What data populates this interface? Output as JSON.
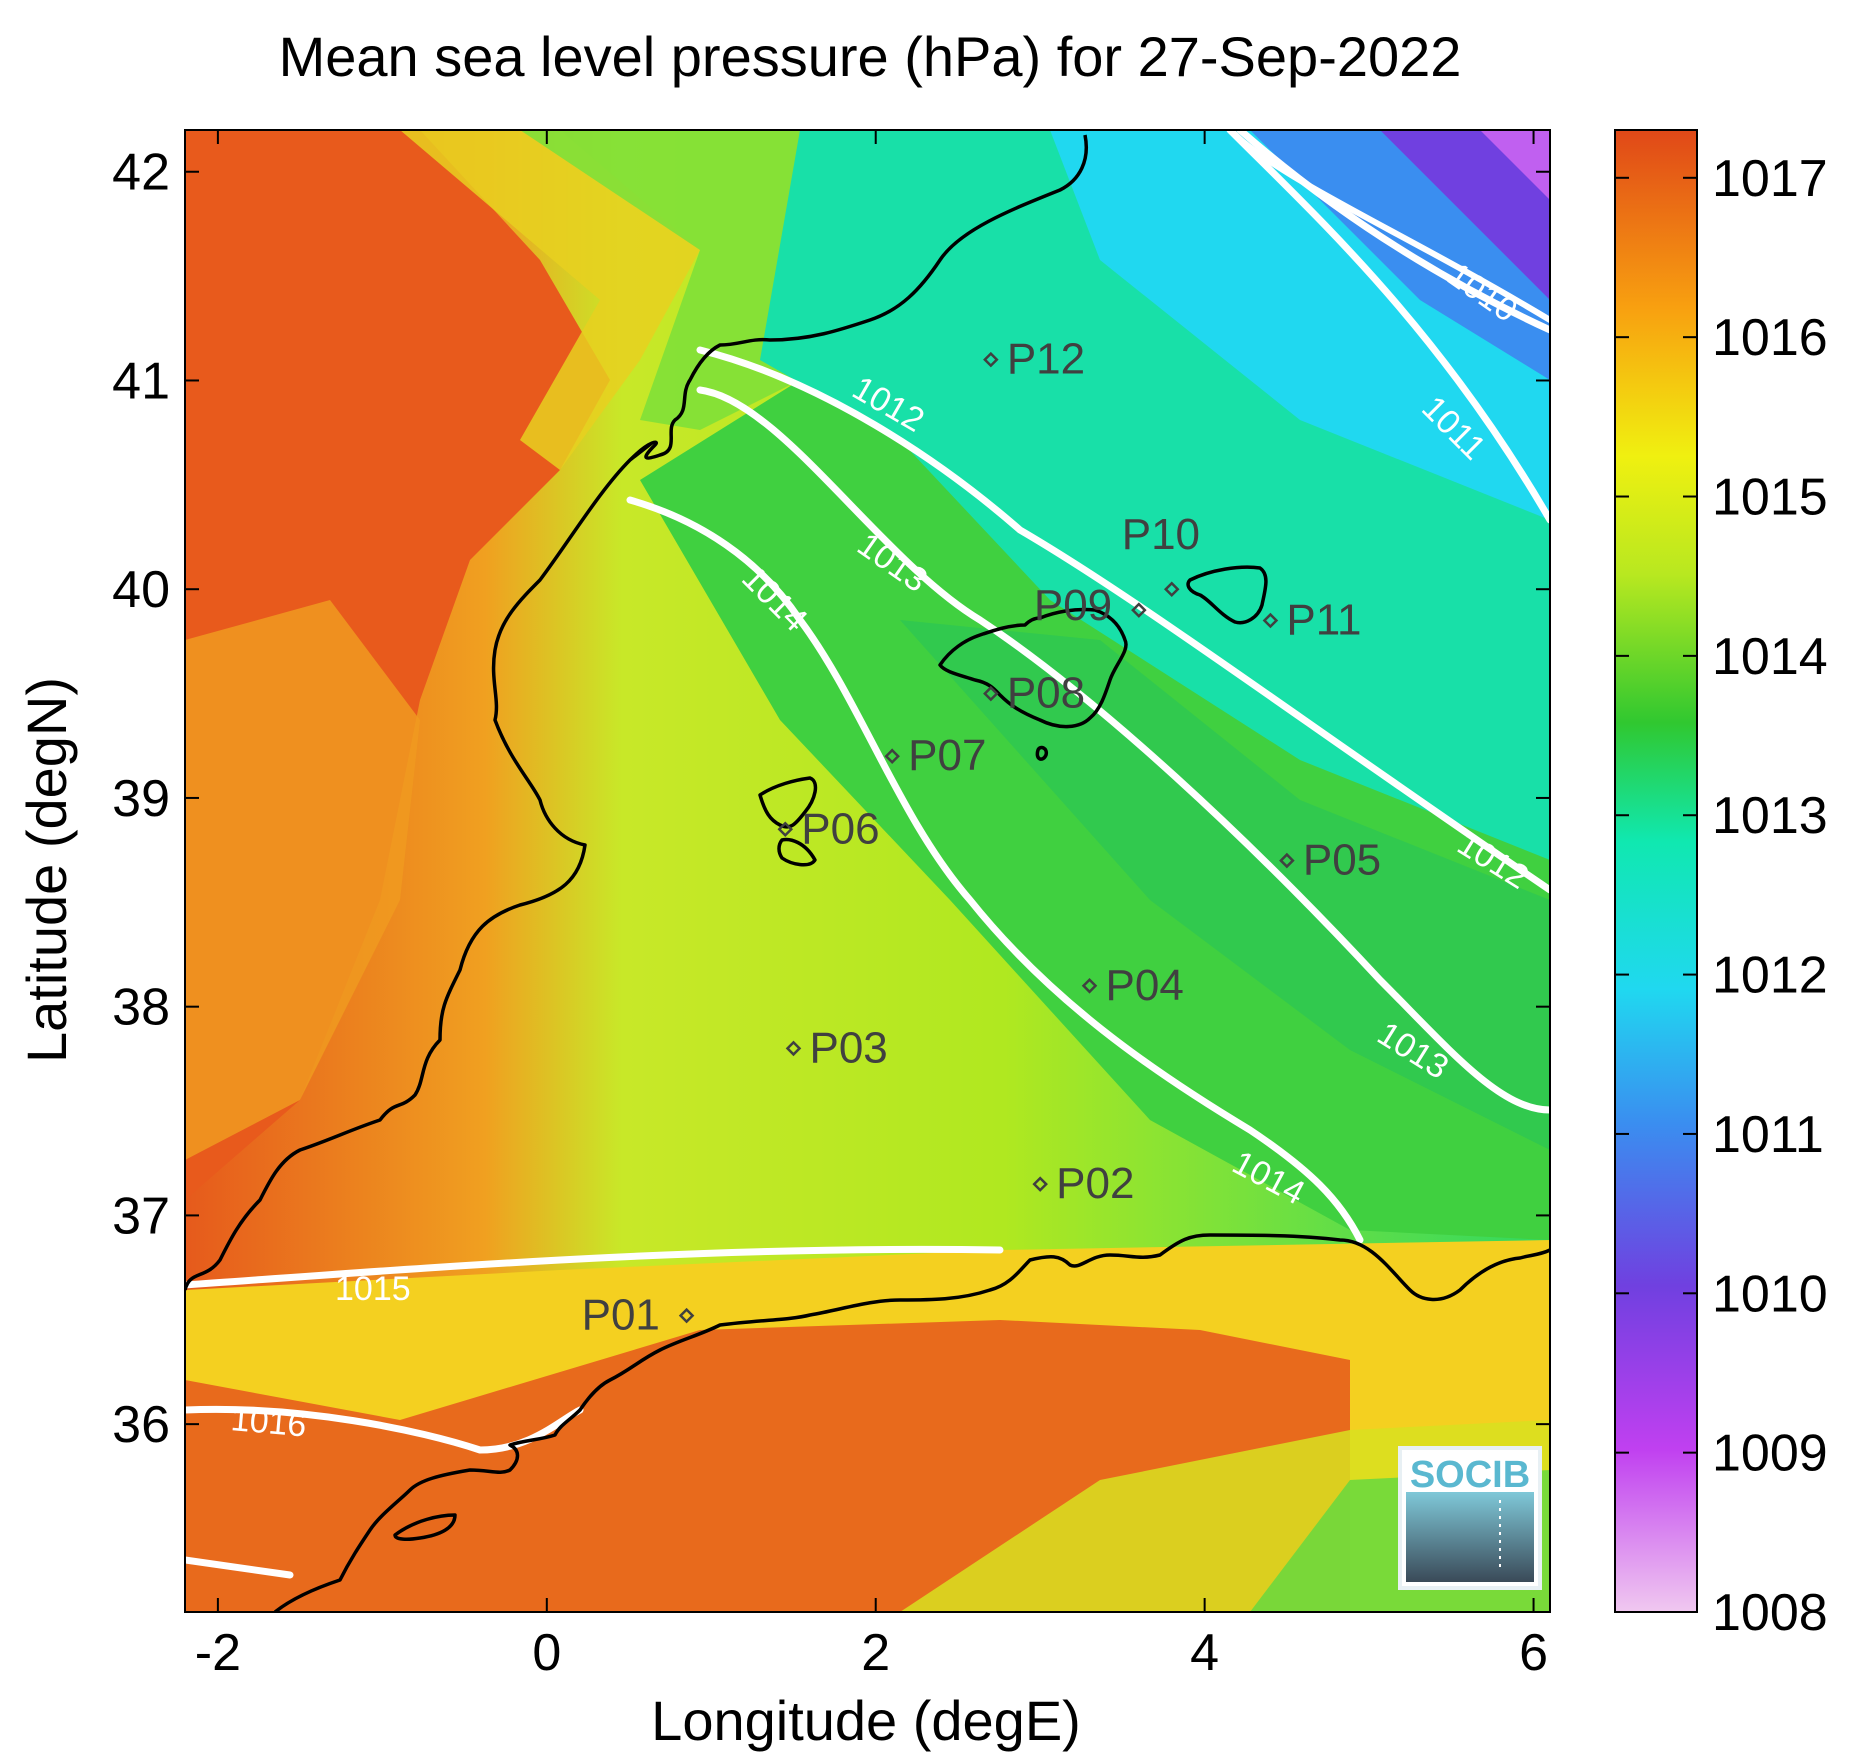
{
  "title": "Mean sea level pressure (hPa) for 27-Sep-2022",
  "x_axis": {
    "label": "Longitude (degE)",
    "range": [
      -2.2,
      6.1
    ],
    "ticks": [
      {
        "value": -2,
        "label": "-2"
      },
      {
        "value": 0,
        "label": "0"
      },
      {
        "value": 2,
        "label": "2"
      },
      {
        "value": 4,
        "label": "4"
      },
      {
        "value": 6,
        "label": "6"
      }
    ]
  },
  "y_axis": {
    "label": "Latitude (degN)",
    "range": [
      35.1,
      42.2
    ],
    "ticks": [
      {
        "value": 42,
        "label": "42"
      },
      {
        "value": 41,
        "label": "41"
      },
      {
        "value": 40,
        "label": "40"
      },
      {
        "value": 39,
        "label": "39"
      },
      {
        "value": 38,
        "label": "38"
      },
      {
        "value": 37,
        "label": "37"
      },
      {
        "value": 36,
        "label": "36"
      }
    ]
  },
  "colorbar": {
    "range": [
      1008,
      1017.3
    ],
    "ticks": [
      {
        "value": 1017,
        "label": "1017"
      },
      {
        "value": 1016,
        "label": "1016"
      },
      {
        "value": 1015,
        "label": "1015"
      },
      {
        "value": 1014,
        "label": "1014"
      },
      {
        "value": 1013,
        "label": "1013"
      },
      {
        "value": 1012,
        "label": "1012"
      },
      {
        "value": 1011,
        "label": "1011"
      },
      {
        "value": 1010,
        "label": "1010"
      },
      {
        "value": 1009,
        "label": "1009"
      },
      {
        "value": 1008,
        "label": "1008"
      }
    ],
    "colors": [
      "#f0c8f0",
      "#c040f0",
      "#7040e0",
      "#3a8ef0",
      "#20d8f0",
      "#10e8b0",
      "#30c830",
      "#b8e820",
      "#f0f010",
      "#f8a010",
      "#e04818"
    ]
  },
  "stations": [
    {
      "label": "P01",
      "lon": 0.85,
      "lat": 36.52
    },
    {
      "label": "P02",
      "lon": 3.0,
      "lat": 37.15
    },
    {
      "label": "P03",
      "lon": 1.5,
      "lat": 37.8
    },
    {
      "label": "P04",
      "lon": 3.3,
      "lat": 38.1
    },
    {
      "label": "P05",
      "lon": 4.5,
      "lat": 38.7
    },
    {
      "label": "P06",
      "lon": 1.45,
      "lat": 38.85
    },
    {
      "label": "P07",
      "lon": 2.1,
      "lat": 39.2
    },
    {
      "label": "P08",
      "lon": 2.7,
      "lat": 39.5
    },
    {
      "label": "P09",
      "lon": 3.6,
      "lat": 39.9
    },
    {
      "label": "P10",
      "lon": 3.8,
      "lat": 40.0
    },
    {
      "label": "P11",
      "lon": 4.4,
      "lat": 39.85
    },
    {
      "label": "P12",
      "lon": 2.7,
      "lat": 41.1
    }
  ],
  "contour_labels": [
    "1010",
    "1011",
    "1012",
    "1012",
    "1013",
    "1013",
    "1014",
    "1014",
    "1015",
    "1016"
  ],
  "logo": {
    "text": "SOCIB"
  },
  "colors": {
    "contour": "#ffffff",
    "coastline": "#000000",
    "station": "#404040"
  }
}
